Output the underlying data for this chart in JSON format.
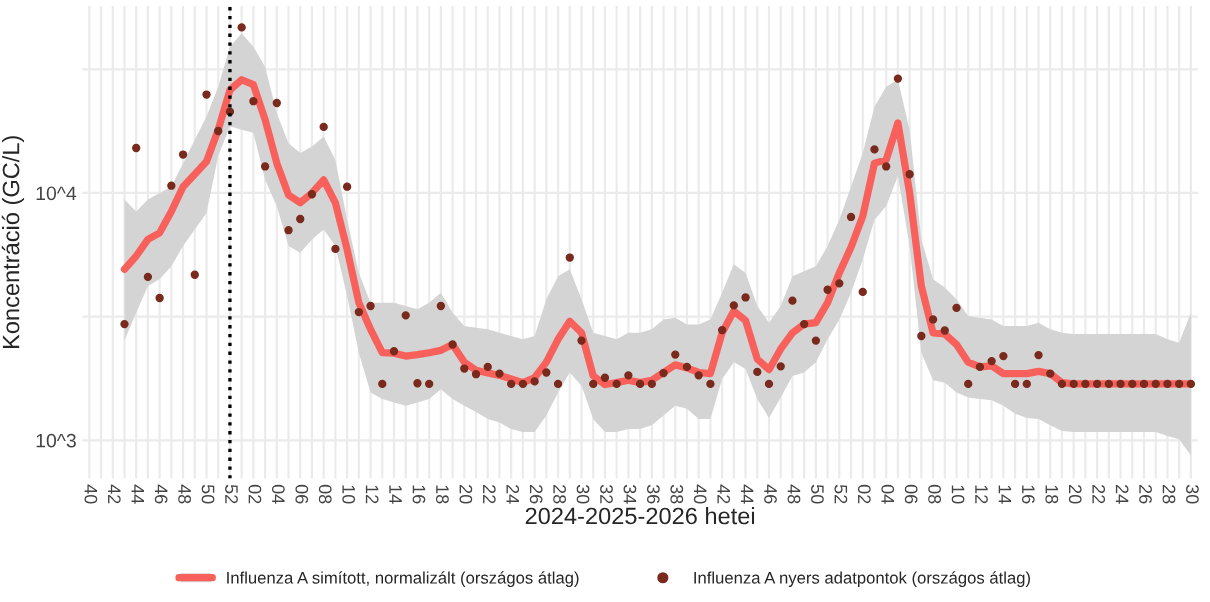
{
  "chart_data": {
    "type": "line",
    "xlabel": "2024-2025-2026 hetei",
    "ylabel": "Koncentráció (GC/L)",
    "categories": [
      "40",
      null,
      "42",
      null,
      "44",
      null,
      "46",
      null,
      "48",
      null,
      "50",
      null,
      "52",
      null,
      "02",
      null,
      "04",
      null,
      "06",
      null,
      "08",
      null,
      "10",
      null,
      "12",
      null,
      "14",
      null,
      "16",
      null,
      "18",
      null,
      "20",
      null,
      "22",
      null,
      "24",
      null,
      "26",
      null,
      "28",
      null,
      "30",
      null,
      "32",
      null,
      "34",
      null,
      "36",
      null,
      "38",
      null,
      "40",
      null,
      "42",
      null,
      "44",
      null,
      "46",
      null,
      "48",
      null,
      "50",
      null,
      "52",
      null,
      "02",
      null,
      "04",
      null,
      "06",
      null,
      "08",
      null,
      "10",
      null,
      "12",
      null,
      "14",
      null,
      "16",
      null,
      "18",
      null,
      "20",
      null,
      "22",
      null,
      "24",
      null,
      "26",
      null,
      "28",
      null,
      "30"
    ],
    "series": [
      {
        "name": "Influenza A simított, normalizált (országos átlag)",
        "color": "#f8605c",
        "values": [
          null,
          null,
          null,
          4910,
          5560,
          6490,
          6900,
          8410,
          10600,
          11900,
          13400,
          18000,
          26100,
          28700,
          27400,
          19800,
          13200,
          9810,
          9120,
          10000,
          11300,
          9120,
          5910,
          3600,
          2810,
          2260,
          2250,
          2190,
          2220,
          2260,
          2310,
          2440,
          2070,
          1920,
          1870,
          1830,
          1770,
          1710,
          1790,
          2070,
          2560,
          3030,
          2720,
          1820,
          1680,
          1710,
          1750,
          1710,
          1750,
          1880,
          2020,
          1960,
          1880,
          1860,
          2720,
          3330,
          3050,
          2130,
          1930,
          2340,
          2720,
          2950,
          2990,
          3600,
          4750,
          6030,
          8050,
          13200,
          13600,
          19200,
          10000,
          4200,
          2720,
          2690,
          2440,
          2070,
          1980,
          2000,
          1860,
          1860,
          1860,
          1900,
          1860,
          1710,
          1690,
          1690,
          1690,
          1690,
          1690,
          1690,
          1690,
          1690,
          1690,
          1690,
          1690
        ],
        "upper": [
          null,
          null,
          null,
          9400,
          8410,
          9400,
          10000,
          10600,
          13200,
          16400,
          20400,
          26900,
          39000,
          44200,
          39000,
          32400,
          21000,
          15900,
          14500,
          15400,
          16900,
          13600,
          7800,
          4750,
          3600,
          3600,
          3600,
          3490,
          3390,
          3600,
          3950,
          3280,
          2900,
          2850,
          2810,
          2720,
          2640,
          2560,
          2640,
          3720,
          4610,
          4910,
          3720,
          2720,
          2640,
          2560,
          2720,
          2720,
          2810,
          3080,
          3130,
          2940,
          2940,
          3080,
          3950,
          5150,
          4750,
          3490,
          2990,
          3490,
          4610,
          4820,
          5060,
          6100,
          7800,
          10600,
          14500,
          22300,
          26900,
          28700,
          18000,
          6490,
          4480,
          4150,
          3720,
          3180,
          3130,
          3080,
          2900,
          2900,
          2900,
          2990,
          2810,
          2720,
          2690,
          2690,
          2690,
          2690,
          2690,
          2690,
          2690,
          2690,
          2560,
          2480,
          3280
        ],
        "lower": [
          null,
          null,
          null,
          2530,
          3280,
          4210,
          4480,
          5060,
          6100,
          7110,
          8300,
          14100,
          18600,
          18000,
          17500,
          11300,
          8840,
          6100,
          5730,
          6490,
          7110,
          6100,
          3830,
          2260,
          1560,
          1470,
          1420,
          1380,
          1420,
          1470,
          1610,
          1470,
          1380,
          1300,
          1220,
          1180,
          1110,
          1080,
          1080,
          1260,
          1560,
          1880,
          1660,
          1220,
          1080,
          1080,
          1110,
          1110,
          1150,
          1260,
          1380,
          1340,
          1220,
          1220,
          1770,
          2070,
          1940,
          1470,
          1230,
          1490,
          1820,
          1880,
          2070,
          2560,
          3080,
          3950,
          5380,
          7800,
          8840,
          11700,
          6100,
          2260,
          1750,
          1710,
          1560,
          1490,
          1470,
          1450,
          1380,
          1280,
          1230,
          1220,
          1150,
          1090,
          1080,
          1080,
          1080,
          1080,
          1080,
          1080,
          1080,
          1080,
          1040,
          1010,
          867
        ]
      },
      {
        "name": "Influenza A nyers adatpontok (országos átlag)",
        "type": "scatter",
        "color": "#7a2a1c",
        "marker": "circle",
        "values": [
          null,
          null,
          null,
          2950,
          15200,
          4580,
          3760,
          10700,
          14300,
          4670,
          25000,
          17800,
          21300,
          46700,
          23500,
          12800,
          23100,
          7070,
          7850,
          9880,
          18500,
          5940,
          10600,
          3300,
          3490,
          1690,
          2290,
          3200,
          1700,
          1690,
          3490,
          2440,
          1950,
          1850,
          1980,
          1860,
          1690,
          1690,
          1730,
          1880,
          1690,
          5480,
          2530,
          1690,
          1790,
          1690,
          1830,
          1690,
          1690,
          1870,
          2220,
          1980,
          1830,
          1690,
          2790,
          3510,
          3780,
          1890,
          1690,
          1990,
          3670,
          2950,
          2530,
          4060,
          4310,
          8000,
          3980,
          15000,
          12800,
          29000,
          11900,
          2640,
          3080,
          2780,
          3430,
          1690,
          1980,
          2090,
          2190,
          1690,
          1690,
          2210,
          1860,
          1690,
          1690,
          1690,
          1690,
          1690,
          1690,
          1690,
          1690,
          1690,
          1690,
          1690,
          1690
        ]
      }
    ],
    "log": "y",
    "ylim": [
      700,
      57000
    ],
    "yticks": [
      {
        "value": 1000,
        "label": "10^3"
      },
      {
        "value": 3162,
        "label": null
      },
      {
        "value": 10000,
        "label": "10^4"
      },
      {
        "value": 31623,
        "label": null
      }
    ],
    "grid": true,
    "ref_lines": [
      {
        "axis": "x",
        "value": "52",
        "label": null,
        "color": "#000000",
        "line_style": "dotted"
      }
    ],
    "legend": "bottom"
  }
}
